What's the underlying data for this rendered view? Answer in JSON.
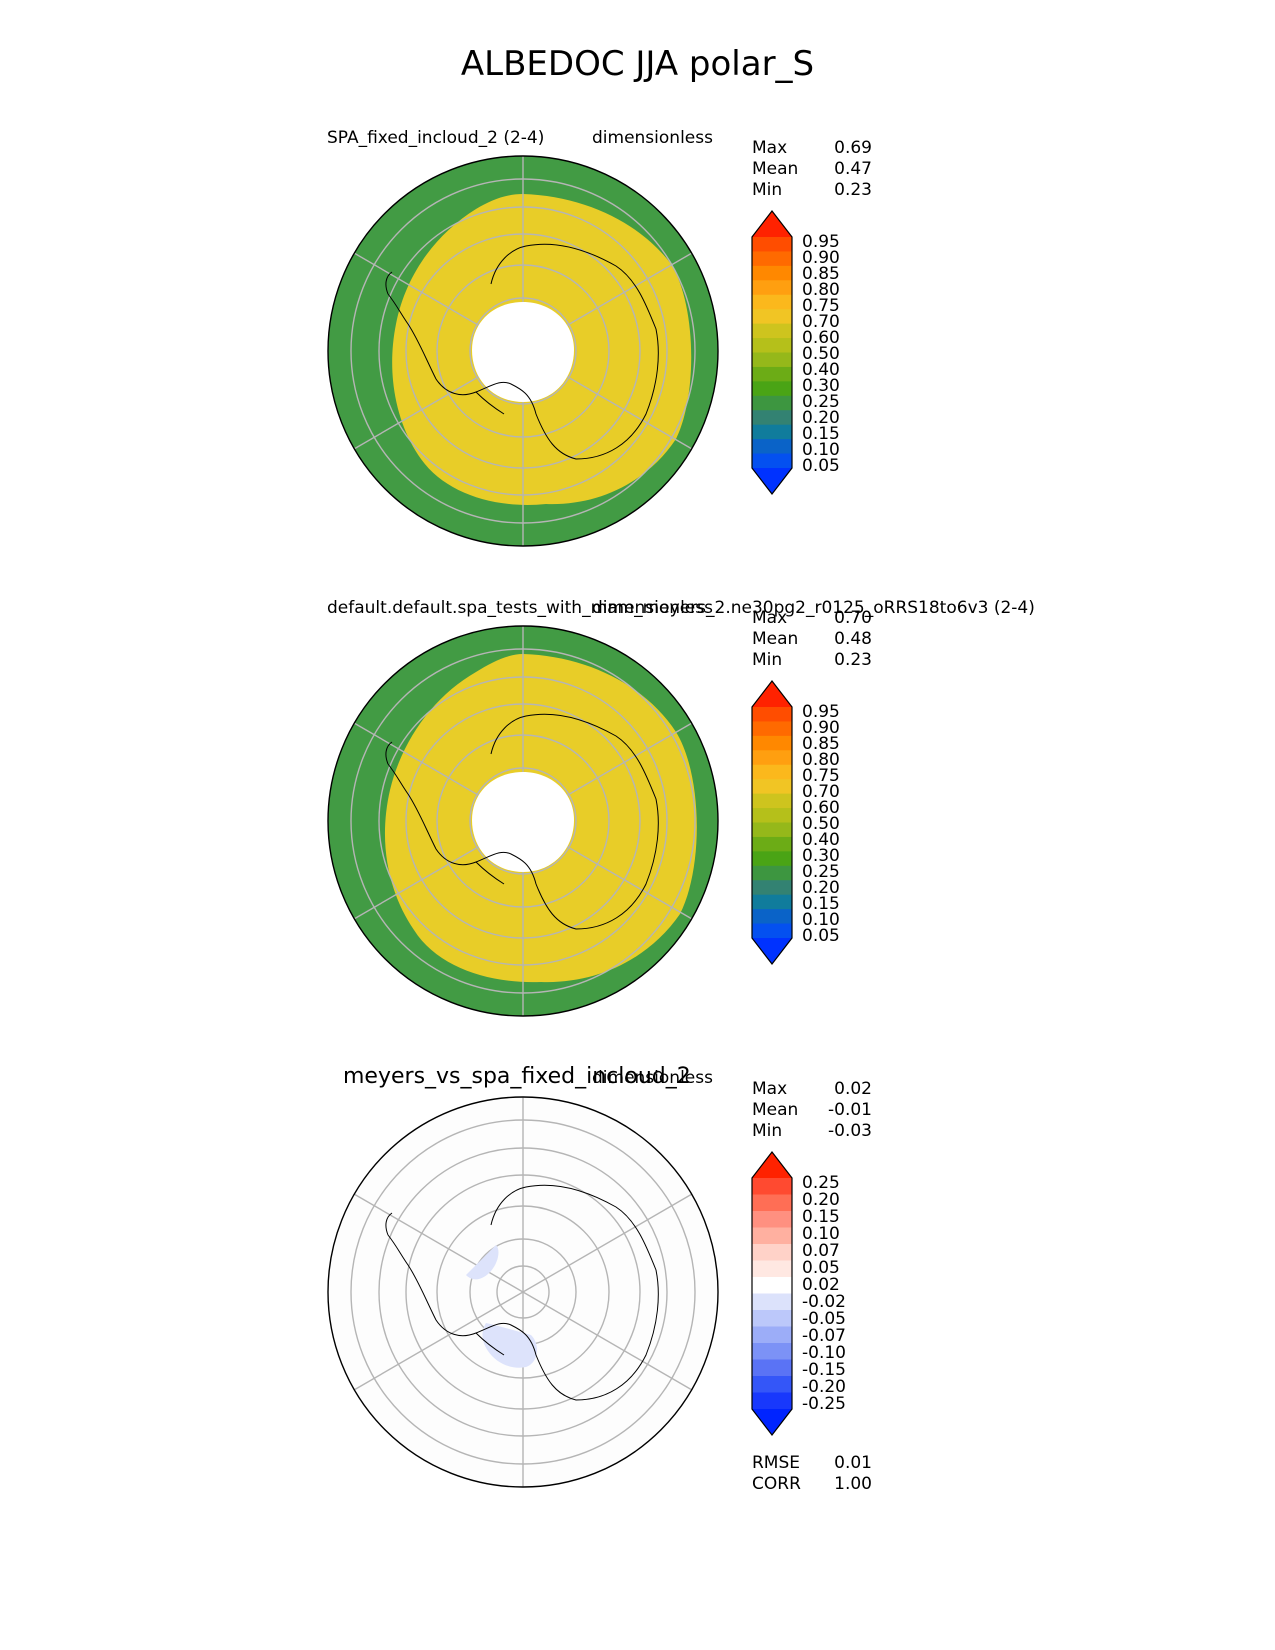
{
  "title": "ALBEDOC JJA polar_S",
  "panels": [
    {
      "id": "test",
      "left_title": "SPA_fixed_incloud_2 (2-4)",
      "right_title": "dimensionless",
      "stats": {
        "max_label": "Max",
        "max": "0.69",
        "mean_label": "Mean",
        "mean": "0.47",
        "min_label": "Min",
        "min": "0.23"
      },
      "colorbar": {
        "ticks": [
          "0.95",
          "0.90",
          "0.85",
          "0.80",
          "0.75",
          "0.70",
          "0.60",
          "0.50",
          "0.40",
          "0.30",
          "0.25",
          "0.20",
          "0.15",
          "0.10",
          "0.05"
        ],
        "colors": [
          "#ff2200",
          "#ff4d00",
          "#ff6a00",
          "#ff8800",
          "#ff9f10",
          "#fbb81c",
          "#f1c524",
          "#cec41e",
          "#b5c01a",
          "#95b81a",
          "#6cac16",
          "#4aa415",
          "#3d9640",
          "#338272",
          "#107c9c",
          "#0a63c8",
          "#0450f0",
          "#0032ff"
        ],
        "top_color": "#ff2200",
        "bottom_color": "#0032ff"
      },
      "map": {
        "inner_fill": "#e8cd28",
        "outer_fill": "#429b44"
      }
    },
    {
      "id": "reference",
      "left_title": "default.default.spa_tests_with_mam_meyers_2.ne30pg2_r0125_oRRS18to6v3 (2-4)",
      "right_title": "dimensionless",
      "stats": {
        "max_label": "Max",
        "max": "0.70",
        "mean_label": "Mean",
        "mean": "0.48",
        "min_label": "Min",
        "min": "0.23"
      },
      "colorbar": {
        "ticks": [
          "0.95",
          "0.90",
          "0.85",
          "0.80",
          "0.75",
          "0.70",
          "0.60",
          "0.50",
          "0.40",
          "0.30",
          "0.25",
          "0.20",
          "0.15",
          "0.10",
          "0.05"
        ],
        "colors": [
          "#ff2200",
          "#ff4d00",
          "#ff6a00",
          "#ff8800",
          "#ff9f10",
          "#fbb81c",
          "#f1c524",
          "#cec41e",
          "#b5c01a",
          "#95b81a",
          "#6cac16",
          "#4aa415",
          "#3d9640",
          "#338272",
          "#107c9c",
          "#0a63c8",
          "#0450f0",
          "#0032ff"
        ],
        "top_color": "#ff2200",
        "bottom_color": "#0032ff"
      },
      "map": {
        "inner_fill": "#e8cd28",
        "outer_fill": "#429b44"
      }
    },
    {
      "id": "difference",
      "left_title": "meyers_vs_spa_fixed_incloud_2",
      "right_title": "dimensionless",
      "stats": {
        "max_label": "Max",
        "max": "0.02",
        "mean_label": "Mean",
        "mean": "-0.01",
        "min_label": "Min",
        "min": "-0.03"
      },
      "colorbar": {
        "ticks": [
          "0.25",
          "0.20",
          "0.15",
          "0.10",
          "0.07",
          "0.05",
          "0.02",
          "-0.02",
          "-0.05",
          "-0.07",
          "-0.10",
          "-0.15",
          "-0.20",
          "-0.25"
        ],
        "colors": [
          "#ff2200",
          "#ff4a30",
          "#ff6e55",
          "#ff9080",
          "#ffb0a0",
          "#ffd2c8",
          "#ffe8e2",
          "#ffffff",
          "#dce2fb",
          "#bcc8fa",
          "#9cadf8",
          "#7c92f6",
          "#5a73f5",
          "#3456f8",
          "#1838fc",
          "#0024ff"
        ],
        "top_color": "#ff2200",
        "bottom_color": "#0024ff"
      },
      "map": {
        "inner_fill": "#fdfdfd",
        "outer_fill": "#fdfdfd"
      },
      "extra": {
        "rmse_label": "RMSE",
        "rmse": "0.01",
        "corr_label": "CORR",
        "corr": "1.00"
      }
    }
  ]
}
